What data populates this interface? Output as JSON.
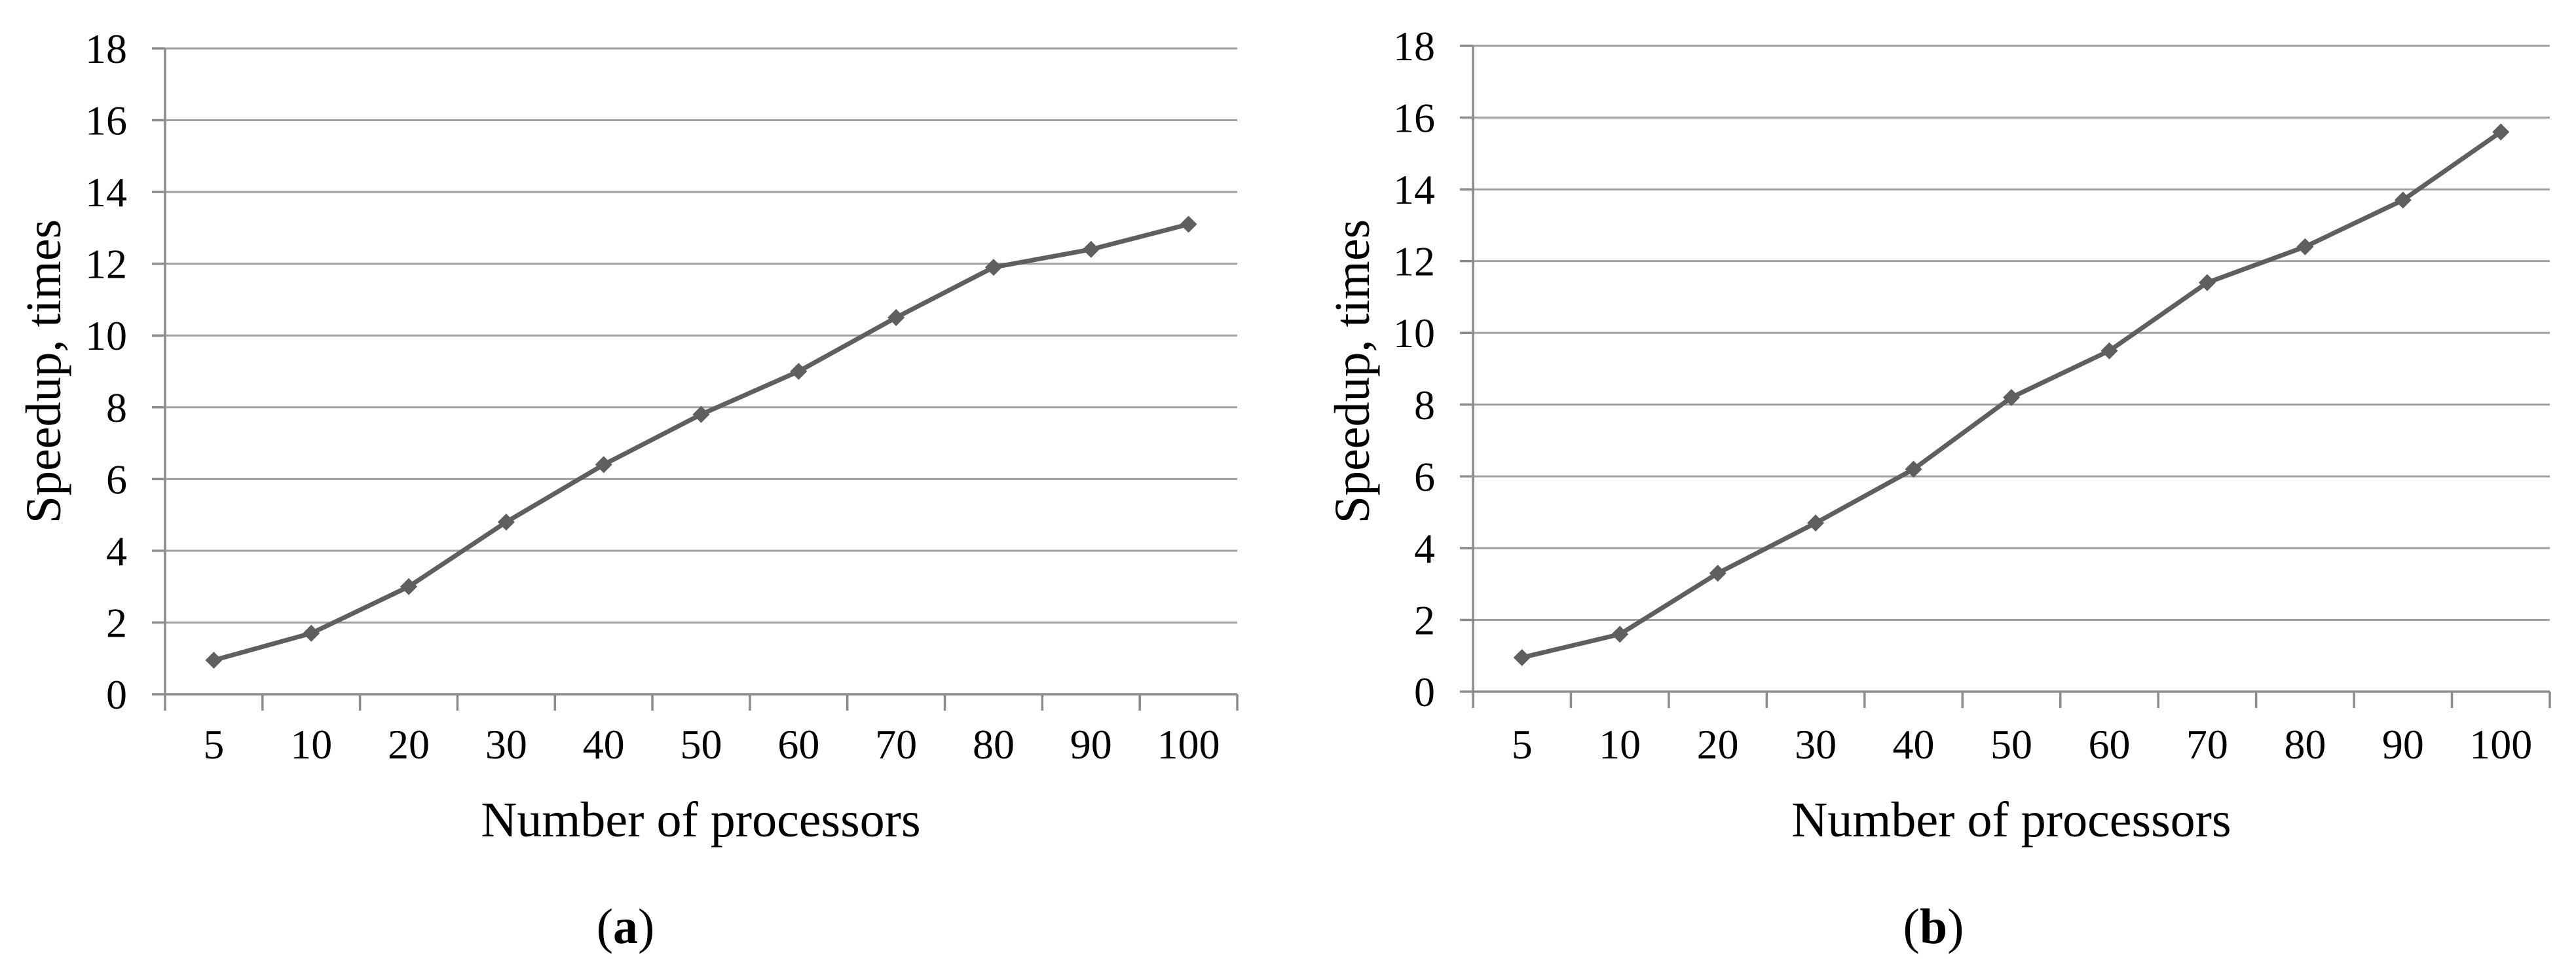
{
  "figure": {
    "background": "#ffffff",
    "description": "Two side-by-side line charts of speedup versus number of processors"
  },
  "colors": {
    "series_line": "#5f5f5f",
    "marker": "#5f5f5f",
    "gridline": "#a0a0a0",
    "axis": "#8c8c8c",
    "text": "#000000"
  },
  "captions": {
    "a": {
      "open": "(",
      "letter": "a",
      "close": ")"
    },
    "b": {
      "open": "(",
      "letter": "b",
      "close": ")"
    }
  },
  "chart_data": [
    {
      "type": "line",
      "panel": "a",
      "title": "",
      "categories": [
        "5",
        "10",
        "20",
        "30",
        "40",
        "50",
        "60",
        "70",
        "80",
        "90",
        "100"
      ],
      "values": [
        0.95,
        1.7,
        3.0,
        4.8,
        6.4,
        7.8,
        9.0,
        10.5,
        11.9,
        12.4,
        13.1
      ],
      "xlabel": "Number of processors",
      "ylabel": "Speedup, times",
      "ylim": [
        0,
        18
      ],
      "yticks": [
        0,
        2,
        4,
        6,
        8,
        10,
        12,
        14,
        16,
        18
      ],
      "grid": true,
      "legend": "none",
      "marker": "diamond"
    },
    {
      "type": "line",
      "panel": "b",
      "title": "",
      "categories": [
        "5",
        "10",
        "20",
        "30",
        "40",
        "50",
        "60",
        "70",
        "80",
        "90",
        "100"
      ],
      "values": [
        0.95,
        1.6,
        3.3,
        4.7,
        6.2,
        8.2,
        9.5,
        11.4,
        12.4,
        13.7,
        15.6
      ],
      "xlabel": "Number of processors",
      "ylabel": "Speedup, times",
      "ylim": [
        0,
        18
      ],
      "yticks": [
        0,
        2,
        4,
        6,
        8,
        10,
        12,
        14,
        16,
        18
      ],
      "grid": true,
      "legend": "none",
      "marker": "diamond"
    }
  ]
}
